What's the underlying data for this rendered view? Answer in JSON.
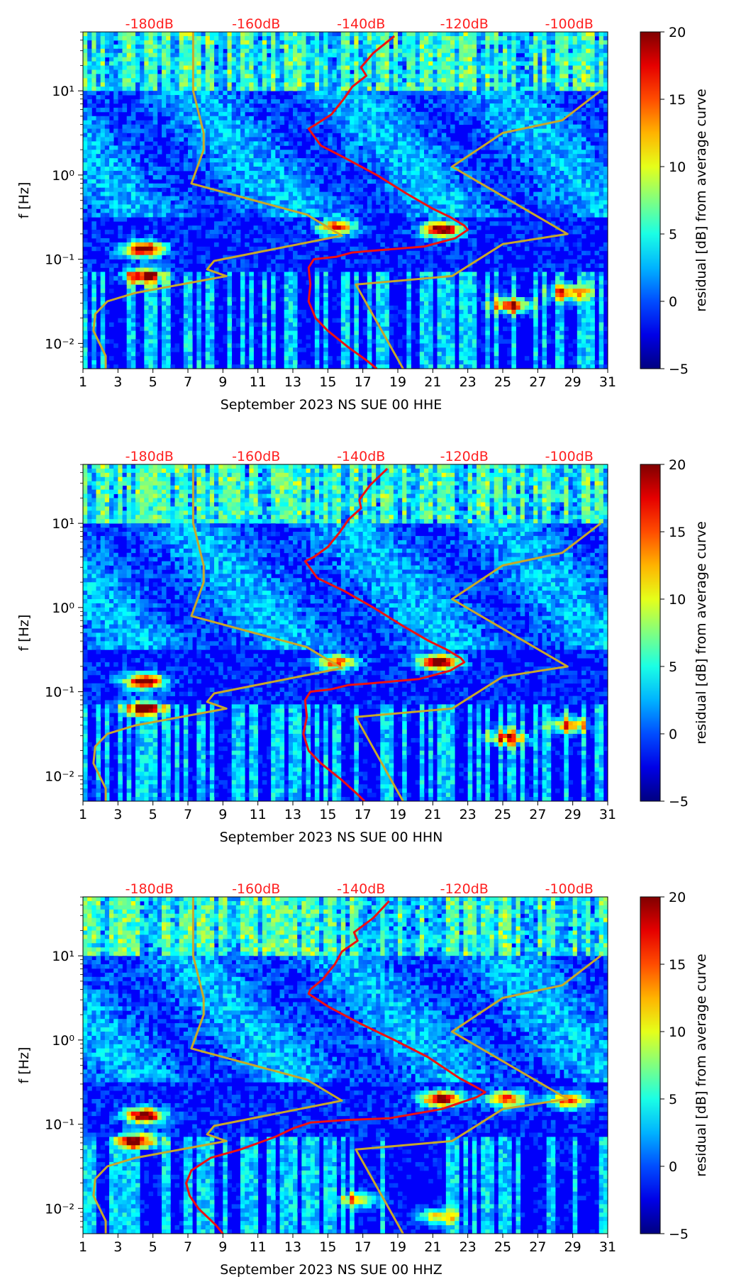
{
  "figure": {
    "colormap": "jet"
  },
  "chart_data": [
    {
      "type": "heatmap",
      "title": "",
      "xlabel": "September 2023 NS SUE 00 HHE",
      "ylabel": "f [Hz]",
      "x_ticks": [
        "1",
        "3",
        "5",
        "7",
        "9",
        "11",
        "13",
        "15",
        "17",
        "19",
        "21",
        "23",
        "25",
        "27",
        "29",
        "31"
      ],
      "y_ticks": [
        "10⁻²",
        "10⁻¹",
        "10⁰",
        "10¹"
      ],
      "xlim": [
        1,
        31
      ],
      "ylim_log10": [
        -2.3,
        1.7
      ],
      "top_labels": [
        "-180dB",
        "-160dB",
        "-140dB",
        "-120dB",
        "-100dB"
      ],
      "colorbar_label": "residual [dB] from average curve",
      "colorbar_ticks": [
        "−5",
        "0",
        "5",
        "10",
        "15",
        "20"
      ],
      "clim": [
        -5,
        20
      ],
      "colors": {
        "red_curve": "#ee1111",
        "gold_curve": "#c8a82a",
        "top_label": "#ff2020"
      },
      "hot_spots": [
        {
          "day": 4.5,
          "log_f": -0.88,
          "value": 20
        },
        {
          "day": 4.5,
          "log_f": -1.2,
          "value": 17
        },
        {
          "day": 21.5,
          "log_f": -0.65,
          "value": 20
        },
        {
          "day": 25.5,
          "log_f": -1.55,
          "value": 15
        },
        {
          "day": 28.8,
          "log_f": -1.4,
          "value": 13
        },
        {
          "day": 15.5,
          "log_f": -0.62,
          "value": 14
        }
      ],
      "series": [
        {
          "name": "red average curve",
          "points": [
            [
              18.8,
              1.65
            ],
            [
              17.6,
              1.45
            ],
            [
              16.9,
              1.28
            ],
            [
              17.2,
              1.18
            ],
            [
              16.4,
              1.05
            ],
            [
              15.9,
              0.9
            ],
            [
              15.2,
              0.72
            ],
            [
              14.3,
              0.6
            ],
            [
              13.9,
              0.55
            ],
            [
              14.6,
              0.35
            ],
            [
              16.0,
              0.2
            ],
            [
              17.8,
              0.0
            ],
            [
              19.5,
              -0.22
            ],
            [
              21.0,
              -0.4
            ],
            [
              22.0,
              -0.5
            ],
            [
              22.8,
              -0.6
            ],
            [
              23.0,
              -0.65
            ],
            [
              22.3,
              -0.75
            ],
            [
              20.5,
              -0.85
            ],
            [
              17.5,
              -0.9
            ],
            [
              16.4,
              -0.92
            ],
            [
              15.5,
              -0.97
            ],
            [
              14.2,
              -1.0
            ],
            [
              13.9,
              -1.1
            ],
            [
              14.0,
              -1.3
            ],
            [
              13.9,
              -1.5
            ],
            [
              14.3,
              -1.7
            ],
            [
              15.0,
              -1.85
            ],
            [
              16.2,
              -2.05
            ],
            [
              17.2,
              -2.2
            ],
            [
              17.8,
              -2.3
            ]
          ]
        },
        {
          "name": "gold low noise model",
          "points": [
            [
              2.3,
              -2.3
            ],
            [
              2.3,
              -2.15
            ],
            [
              1.6,
              -1.85
            ],
            [
              1.7,
              -1.65
            ],
            [
              2.4,
              -1.5
            ],
            [
              4.0,
              -1.4
            ],
            [
              9.2,
              -1.2
            ],
            [
              8.1,
              -1.12
            ],
            [
              8.5,
              -1.02
            ],
            [
              15.8,
              -0.72
            ],
            [
              13.8,
              -0.47
            ],
            [
              7.2,
              -0.1
            ],
            [
              7.9,
              0.3
            ],
            [
              7.9,
              0.5
            ],
            [
              7.3,
              1.0
            ],
            [
              7.3,
              1.7
            ]
          ]
        },
        {
          "name": "gold high noise model",
          "points": [
            [
              19.3,
              -2.3
            ],
            [
              16.6,
              -1.3
            ],
            [
              22.1,
              -1.2
            ],
            [
              25.0,
              -0.82
            ],
            [
              28.7,
              -0.7
            ],
            [
              22.1,
              0.1
            ],
            [
              25.0,
              0.5
            ],
            [
              28.4,
              0.65
            ],
            [
              30.6,
              1.0
            ]
          ]
        }
      ]
    },
    {
      "type": "heatmap",
      "title": "",
      "xlabel": "September 2023 NS SUE 00 HHN",
      "ylabel": "f [Hz]",
      "x_ticks": [
        "1",
        "3",
        "5",
        "7",
        "9",
        "11",
        "13",
        "15",
        "17",
        "19",
        "21",
        "23",
        "25",
        "27",
        "29",
        "31"
      ],
      "y_ticks": [
        "10⁻²",
        "10⁻¹",
        "10⁰",
        "10¹"
      ],
      "xlim": [
        1,
        31
      ],
      "ylim_log10": [
        -2.3,
        1.7
      ],
      "top_labels": [
        "-180dB",
        "-160dB",
        "-140dB",
        "-120dB",
        "-100dB"
      ],
      "colorbar_label": "residual [dB] from average curve",
      "colorbar_ticks": [
        "−5",
        "0",
        "5",
        "10",
        "15",
        "20"
      ],
      "clim": [
        -5,
        20
      ],
      "colors": {
        "red_curve": "#ee1111",
        "gold_curve": "#c8a82a",
        "top_label": "#ff2020"
      },
      "hot_spots": [
        {
          "day": 4.5,
          "log_f": -0.88,
          "value": 20
        },
        {
          "day": 4.5,
          "log_f": -1.2,
          "value": 16
        },
        {
          "day": 21.3,
          "log_f": -0.65,
          "value": 20
        },
        {
          "day": 25.3,
          "log_f": -1.55,
          "value": 13
        },
        {
          "day": 28.8,
          "log_f": -1.4,
          "value": 12
        },
        {
          "day": 15.5,
          "log_f": -0.65,
          "value": 13
        }
      ],
      "series": [
        {
          "name": "red average curve",
          "points": [
            [
              18.4,
              1.65
            ],
            [
              17.4,
              1.45
            ],
            [
              16.8,
              1.28
            ],
            [
              16.9,
              1.18
            ],
            [
              16.2,
              1.05
            ],
            [
              15.7,
              0.9
            ],
            [
              15.0,
              0.72
            ],
            [
              14.2,
              0.6
            ],
            [
              13.7,
              0.55
            ],
            [
              14.4,
              0.35
            ],
            [
              15.9,
              0.2
            ],
            [
              17.6,
              0.0
            ],
            [
              19.3,
              -0.22
            ],
            [
              20.8,
              -0.4
            ],
            [
              21.8,
              -0.5
            ],
            [
              22.6,
              -0.6
            ],
            [
              22.8,
              -0.65
            ],
            [
              22.0,
              -0.75
            ],
            [
              20.2,
              -0.85
            ],
            [
              17.5,
              -0.9
            ],
            [
              16.2,
              -0.92
            ],
            [
              15.2,
              -0.97
            ],
            [
              14.0,
              -1.0
            ],
            [
              13.7,
              -1.1
            ],
            [
              13.8,
              -1.3
            ],
            [
              13.6,
              -1.5
            ],
            [
              13.9,
              -1.7
            ],
            [
              14.6,
              -1.85
            ],
            [
              15.8,
              -2.05
            ],
            [
              16.6,
              -2.2
            ],
            [
              17.1,
              -2.3
            ]
          ]
        },
        {
          "name": "gold low noise model",
          "points": [
            [
              2.3,
              -2.3
            ],
            [
              2.3,
              -2.15
            ],
            [
              1.6,
              -1.85
            ],
            [
              1.7,
              -1.65
            ],
            [
              2.4,
              -1.5
            ],
            [
              4.0,
              -1.4
            ],
            [
              9.2,
              -1.2
            ],
            [
              8.1,
              -1.12
            ],
            [
              8.5,
              -1.02
            ],
            [
              15.8,
              -0.72
            ],
            [
              13.8,
              -0.47
            ],
            [
              7.2,
              -0.1
            ],
            [
              7.9,
              0.3
            ],
            [
              7.9,
              0.5
            ],
            [
              7.3,
              1.0
            ],
            [
              7.3,
              1.7
            ]
          ]
        },
        {
          "name": "gold high noise model",
          "points": [
            [
              19.3,
              -2.3
            ],
            [
              16.6,
              -1.3
            ],
            [
              22.1,
              -1.2
            ],
            [
              25.0,
              -0.82
            ],
            [
              28.7,
              -0.7
            ],
            [
              22.1,
              0.1
            ],
            [
              25.0,
              0.5
            ],
            [
              28.4,
              0.65
            ],
            [
              30.6,
              1.0
            ]
          ]
        }
      ]
    },
    {
      "type": "heatmap",
      "title": "",
      "xlabel": "September 2023 NS SUE 00 HHZ",
      "ylabel": "f [Hz]",
      "x_ticks": [
        "1",
        "3",
        "5",
        "7",
        "9",
        "11",
        "13",
        "15",
        "17",
        "19",
        "21",
        "23",
        "25",
        "27",
        "29",
        "31"
      ],
      "y_ticks": [
        "10⁻²",
        "10⁻¹",
        "10⁰",
        "10¹"
      ],
      "xlim": [
        1,
        31
      ],
      "ylim_log10": [
        -2.3,
        1.7
      ],
      "top_labels": [
        "-180dB",
        "-160dB",
        "-140dB",
        "-120dB",
        "-100dB"
      ],
      "colorbar_label": "residual [dB] from average curve",
      "colorbar_ticks": [
        "−5",
        "0",
        "5",
        "10",
        "15",
        "20"
      ],
      "clim": [
        -5,
        20
      ],
      "colors": {
        "red_curve": "#ee1111",
        "gold_curve": "#c8a82a",
        "top_label": "#ff2020"
      },
      "hot_spots": [
        {
          "day": 4.5,
          "log_f": -0.9,
          "value": 20
        },
        {
          "day": 4.2,
          "log_f": -1.2,
          "value": 17
        },
        {
          "day": 21.5,
          "log_f": -0.7,
          "value": 20
        },
        {
          "day": 25.2,
          "log_f": -0.7,
          "value": 14
        },
        {
          "day": 28.8,
          "log_f": -0.72,
          "value": 14
        },
        {
          "day": 21.3,
          "log_f": -2.1,
          "value": 10
        },
        {
          "day": 16.8,
          "log_f": -1.9,
          "value": 9
        }
      ],
      "series": [
        {
          "name": "red average curve",
          "points": [
            [
              18.5,
              1.65
            ],
            [
              17.6,
              1.45
            ],
            [
              16.5,
              1.28
            ],
            [
              16.7,
              1.18
            ],
            [
              15.8,
              1.05
            ],
            [
              15.4,
              0.9
            ],
            [
              14.7,
              0.72
            ],
            [
              14.0,
              0.6
            ],
            [
              13.9,
              0.55
            ],
            [
              15.0,
              0.4
            ],
            [
              16.8,
              0.2
            ],
            [
              18.8,
              0.0
            ],
            [
              20.7,
              -0.2
            ],
            [
              22.5,
              -0.45
            ],
            [
              23.4,
              -0.55
            ],
            [
              24.0,
              -0.62
            ],
            [
              23.5,
              -0.68
            ],
            [
              21.5,
              -0.82
            ],
            [
              18.5,
              -0.93
            ],
            [
              16.0,
              -0.95
            ],
            [
              14.0,
              -0.98
            ],
            [
              13.0,
              -1.05
            ],
            [
              12.0,
              -1.15
            ],
            [
              10.0,
              -1.3
            ],
            [
              8.3,
              -1.4
            ],
            [
              7.2,
              -1.55
            ],
            [
              6.9,
              -1.7
            ],
            [
              7.1,
              -1.85
            ],
            [
              7.6,
              -2.0
            ],
            [
              8.6,
              -2.2
            ],
            [
              9.0,
              -2.3
            ]
          ]
        },
        {
          "name": "gold low noise model",
          "points": [
            [
              2.3,
              -2.3
            ],
            [
              2.3,
              -2.15
            ],
            [
              1.6,
              -1.85
            ],
            [
              1.7,
              -1.65
            ],
            [
              2.4,
              -1.5
            ],
            [
              4.0,
              -1.4
            ],
            [
              9.2,
              -1.2
            ],
            [
              8.1,
              -1.12
            ],
            [
              8.5,
              -1.02
            ],
            [
              15.8,
              -0.72
            ],
            [
              13.8,
              -0.47
            ],
            [
              7.2,
              -0.1
            ],
            [
              7.9,
              0.3
            ],
            [
              7.9,
              0.5
            ],
            [
              7.3,
              1.0
            ],
            [
              7.3,
              1.7
            ]
          ]
        },
        {
          "name": "gold high noise model",
          "points": [
            [
              19.3,
              -2.3
            ],
            [
              16.6,
              -1.3
            ],
            [
              22.1,
              -1.2
            ],
            [
              25.0,
              -0.82
            ],
            [
              28.7,
              -0.7
            ],
            [
              22.1,
              0.1
            ],
            [
              25.0,
              0.5
            ],
            [
              28.4,
              0.65
            ],
            [
              30.6,
              1.0
            ]
          ]
        }
      ]
    }
  ]
}
